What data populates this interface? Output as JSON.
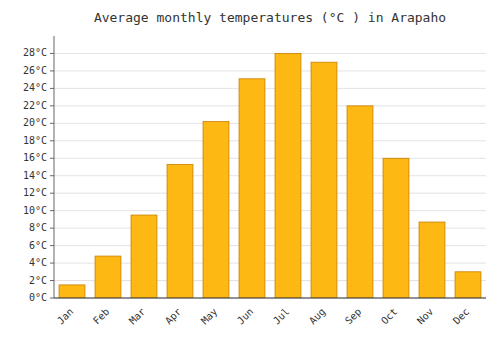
{
  "chart_data": {
    "type": "bar",
    "title": "Average monthly temperatures (°C ) in Arapaho",
    "categories": [
      "Jan",
      "Feb",
      "Mar",
      "Apr",
      "May",
      "Jun",
      "Jul",
      "Aug",
      "Sep",
      "Oct",
      "Nov",
      "Dec"
    ],
    "values": [
      1.5,
      4.8,
      9.5,
      15.3,
      20.2,
      25.1,
      28.0,
      27.0,
      22.0,
      16.0,
      8.7,
      3.0
    ],
    "color": "#FDB813",
    "ylim": [
      0,
      30
    ],
    "yticks": [
      {
        "value": 0,
        "label": "0°C"
      },
      {
        "value": 2,
        "label": "2°C"
      },
      {
        "value": 4,
        "label": "4°C"
      },
      {
        "value": 6,
        "label": "6°C"
      },
      {
        "value": 8,
        "label": "8°C"
      },
      {
        "value": 10,
        "label": "10°C"
      },
      {
        "value": 12,
        "label": "12°C"
      },
      {
        "value": 14,
        "label": "14°C"
      },
      {
        "value": 16,
        "label": "16°C"
      },
      {
        "value": 18,
        "label": "18°C"
      },
      {
        "value": 20,
        "label": "20°C"
      },
      {
        "value": 22,
        "label": "22°C"
      },
      {
        "value": 24,
        "label": "24°C"
      },
      {
        "value": 26,
        "label": "26°C"
      },
      {
        "value": 28,
        "label": "28°C"
      }
    ],
    "grid": true
  }
}
